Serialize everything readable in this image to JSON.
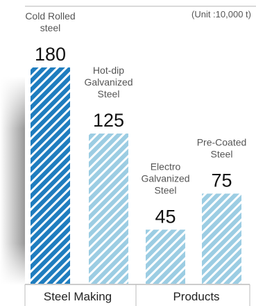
{
  "chart_data": {
    "type": "bar",
    "unit_note": "(Unit :10,000 t)",
    "categories": [
      "Cold Rolled\nsteel",
      "Hot-dip\nGalvanized\nSteel",
      "Electro\nGalvanized\nSteel",
      "Pre-Coated\nSteel"
    ],
    "values": [
      180,
      125,
      45,
      75
    ],
    "value_labels": [
      "180",
      "125",
      "45",
      "75"
    ],
    "groups": [
      {
        "label": "Steel Making",
        "categories": [
          0,
          1
        ]
      },
      {
        "label": "Products",
        "categories": [
          2,
          3
        ]
      }
    ],
    "ylim": [
      0,
      180
    ],
    "grid": false,
    "colors": {
      "cold_rolled_fill": "#1f7dbf",
      "cold_rolled_stripe": "#ffffff",
      "light_fill": "#9ccde3",
      "light_stripe": "#ffffff",
      "label_text": "#555555",
      "value_text": "#111111",
      "axis_line": "#999999",
      "side_shadow": "#333333"
    }
  }
}
